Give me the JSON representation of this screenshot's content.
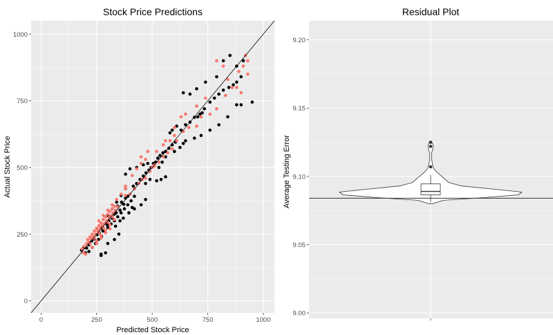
{
  "chart_data": [
    {
      "type": "scatter",
      "title": "Stock Price Predictions",
      "xlabel": "Predicted Stock Price",
      "ylabel": "Actual Stock Price",
      "xlim": [
        -45,
        1050
      ],
      "ylim": [
        -45,
        1050
      ],
      "xticks": [
        0,
        250,
        500,
        750,
        1000
      ],
      "yticks": [
        0,
        250,
        500,
        750,
        1000
      ],
      "grid": true,
      "reference_line": {
        "slope": 1,
        "intercept": 0
      },
      "colors": {
        "panel": "#ebebeb",
        "grid": "#ffffff",
        "actual_vs_pred": "#000000",
        "second_series": "#f8766d",
        "line": "#000000"
      },
      "series": [
        {
          "color": "#000000",
          "points": [
            [
              182,
              190
            ],
            [
              192,
              200
            ],
            [
              205,
              198
            ],
            [
              215,
              210
            ],
            [
              228,
              225
            ],
            [
              240,
              232
            ],
            [
              252,
              248
            ],
            [
              262,
              255
            ],
            [
              270,
              272
            ],
            [
              278,
              262
            ],
            [
              290,
              290
            ],
            [
              298,
              285
            ],
            [
              305,
              300
            ],
            [
              312,
              315
            ],
            [
              320,
              310
            ],
            [
              330,
              325
            ],
            [
              338,
              330
            ],
            [
              345,
              355
            ],
            [
              355,
              340
            ],
            [
              362,
              370
            ],
            [
              372,
              362
            ],
            [
              380,
              385
            ],
            [
              390,
              392
            ],
            [
              215,
              185
            ],
            [
              230,
              200
            ],
            [
              245,
              215
            ],
            [
              258,
              230
            ],
            [
              272,
              242
            ],
            [
              285,
              262
            ],
            [
              300,
              275
            ],
            [
              315,
              288
            ],
            [
              330,
              300
            ],
            [
              345,
              315
            ],
            [
              360,
              330
            ],
            [
              375,
              345
            ],
            [
              390,
              360
            ],
            [
              405,
              375
            ],
            [
              420,
              392
            ],
            [
              300,
              320
            ],
            [
              320,
              345
            ],
            [
              340,
              370
            ],
            [
              360,
              395
            ],
            [
              380,
              420
            ],
            [
              415,
              430
            ],
            [
              430,
              440
            ],
            [
              445,
              455
            ],
            [
              460,
              468
            ],
            [
              472,
              480
            ],
            [
              485,
              490
            ],
            [
              495,
              500
            ],
            [
              505,
              515
            ],
            [
              515,
              520
            ],
            [
              525,
              535
            ],
            [
              535,
              545
            ],
            [
              548,
              555
            ],
            [
              560,
              560
            ],
            [
              575,
              572
            ],
            [
              590,
              585
            ],
            [
              605,
              595
            ],
            [
              630,
              640
            ],
            [
              650,
              660
            ],
            [
              670,
              670
            ],
            [
              690,
              688
            ],
            [
              715,
              700
            ],
            [
              735,
              720
            ],
            [
              760,
              745
            ],
            [
              780,
              760
            ],
            [
              800,
              775
            ],
            [
              820,
              790
            ],
            [
              845,
              800
            ],
            [
              865,
              810
            ],
            [
              880,
              820
            ],
            [
              900,
              840
            ],
            [
              650,
              600
            ],
            [
              690,
              610
            ],
            [
              720,
              620
            ],
            [
              760,
              640
            ],
            [
              800,
              660
            ],
            [
              840,
              690
            ],
            [
              880,
              735
            ],
            [
              900,
              735
            ],
            [
              950,
              745
            ],
            [
              640,
              780
            ],
            [
              670,
              775
            ],
            [
              700,
              795
            ],
            [
              740,
              820
            ],
            [
              790,
              840
            ],
            [
              820,
              900
            ],
            [
              850,
              920
            ],
            [
              880,
              880
            ],
            [
              910,
              900
            ],
            [
              520,
              450
            ],
            [
              540,
              455
            ],
            [
              560,
              465
            ],
            [
              270,
              170
            ],
            [
              300,
              215
            ],
            [
              330,
              230
            ],
            [
              350,
              250
            ],
            [
              420,
              345
            ],
            [
              450,
              360
            ],
            [
              470,
              380
            ],
            [
              380,
              475
            ],
            [
              400,
              495
            ],
            [
              430,
              500
            ],
            [
              460,
              510
            ],
            [
              480,
              515
            ],
            [
              270,
              175
            ],
            [
              290,
              180
            ],
            [
              200,
              180
            ],
            [
              335,
              280
            ],
            [
              355,
              300
            ],
            [
              370,
              310
            ],
            [
              395,
              330
            ],
            [
              410,
              350
            ],
            [
              600,
              560
            ],
            [
              625,
              575
            ],
            [
              640,
              590
            ],
            [
              530,
              500
            ],
            [
              545,
              520
            ],
            [
              560,
              540
            ],
            [
              470,
              440
            ],
            [
              490,
              455
            ],
            [
              590,
              640
            ],
            [
              610,
              655
            ],
            [
              580,
              630
            ],
            [
              705,
              690
            ],
            [
              725,
              705
            ]
          ]
        },
        {
          "color": "#f8766d",
          "points": [
            [
              185,
              195
            ],
            [
              195,
              205
            ],
            [
              205,
              215
            ],
            [
              215,
              220
            ],
            [
              225,
              232
            ],
            [
              235,
              240
            ],
            [
              245,
              250
            ],
            [
              255,
              262
            ],
            [
              265,
              270
            ],
            [
              275,
              282
            ],
            [
              285,
              290
            ],
            [
              295,
              300
            ],
            [
              305,
              312
            ],
            [
              315,
              320
            ],
            [
              325,
              330
            ],
            [
              335,
              340
            ],
            [
              345,
              352
            ],
            [
              210,
              230
            ],
            [
              220,
              240
            ],
            [
              230,
              250
            ],
            [
              240,
              262
            ],
            [
              250,
              272
            ],
            [
              260,
              282
            ],
            [
              270,
              292
            ],
            [
              280,
              305
            ],
            [
              290,
              315
            ],
            [
              300,
              325
            ],
            [
              310,
              335
            ],
            [
              320,
              345
            ],
            [
              330,
              355
            ],
            [
              220,
              215
            ],
            [
              240,
              235
            ],
            [
              260,
              255
            ],
            [
              280,
              275
            ],
            [
              300,
              295
            ],
            [
              320,
              315
            ],
            [
              250,
              225
            ],
            [
              270,
              245
            ],
            [
              290,
              265
            ],
            [
              310,
              285
            ],
            [
              330,
              305
            ],
            [
              260,
              300
            ],
            [
              280,
              320
            ],
            [
              300,
              340
            ],
            [
              320,
              360
            ],
            [
              340,
              380
            ],
            [
              360,
              400
            ],
            [
              380,
              420
            ],
            [
              380,
              395
            ],
            [
              400,
              400
            ],
            [
              420,
              420
            ],
            [
              440,
              440
            ],
            [
              455,
              455
            ],
            [
              470,
              460
            ],
            [
              490,
              485
            ],
            [
              510,
              505
            ],
            [
              530,
              520
            ],
            [
              550,
              540
            ],
            [
              570,
              555
            ],
            [
              590,
              570
            ],
            [
              610,
              600
            ],
            [
              640,
              635
            ],
            [
              665,
              650
            ],
            [
              700,
              655
            ],
            [
              720,
              690
            ],
            [
              760,
              700
            ],
            [
              790,
              720
            ],
            [
              830,
              770
            ],
            [
              860,
              800
            ],
            [
              890,
              860
            ],
            [
              910,
              880
            ],
            [
              930,
              900
            ],
            [
              450,
              540
            ],
            [
              480,
              560
            ],
            [
              520,
              560
            ],
            [
              560,
              600
            ],
            [
              600,
              650
            ],
            [
              630,
              690
            ],
            [
              650,
              700
            ],
            [
              700,
              730
            ],
            [
              740,
              760
            ],
            [
              790,
              900
            ],
            [
              820,
              880
            ],
            [
              840,
              830
            ],
            [
              880,
              800
            ],
            [
              900,
              780
            ],
            [
              920,
              920
            ],
            [
              930,
              850
            ],
            [
              600,
              620
            ],
            [
              580,
              600
            ],
            [
              550,
              585
            ],
            [
              500,
              500
            ],
            [
              510,
              510
            ],
            [
              380,
              430
            ],
            [
              410,
              470
            ],
            [
              430,
              495
            ],
            [
              450,
              515
            ],
            [
              470,
              530
            ],
            [
              230,
              200
            ],
            [
              250,
              215
            ],
            [
              270,
              235
            ],
            [
              290,
              255
            ],
            [
              310,
              270
            ],
            [
              200,
              175
            ],
            [
              190,
              180
            ]
          ]
        }
      ]
    },
    {
      "type": "violin",
      "title": "Residual Plot",
      "xlabel": "",
      "ylabel": "Average Testing Error",
      "ylim": [
        8.996,
        9.214
      ],
      "yticks": [
        "9.00",
        "9.05",
        "9.10",
        "9.15",
        "9.20"
      ],
      "ytick_values": [
        9.0,
        9.05,
        9.1,
        9.15,
        9.2
      ],
      "xticks": [
        ""
      ],
      "grid": true,
      "hline": 9.084,
      "box": {
        "min": 9.081,
        "q1": 9.0865,
        "median": 9.089,
        "q3": 9.0945,
        "max": 9.101
      },
      "outliers": [
        9.107,
        9.122,
        9.125
      ],
      "violin_profile": [
        [
          9.08,
          0.02
        ],
        [
          9.0825,
          0.14
        ],
        [
          9.0845,
          0.6
        ],
        [
          9.0865,
          0.96
        ],
        [
          9.0885,
          1.0
        ],
        [
          9.0905,
          0.72
        ],
        [
          9.093,
          0.34
        ],
        [
          9.0955,
          0.2
        ],
        [
          9.099,
          0.14
        ],
        [
          9.103,
          0.07
        ],
        [
          9.106,
          0.03
        ],
        [
          9.109,
          0.02
        ],
        [
          9.113,
          0.01
        ],
        [
          9.117,
          0.01
        ],
        [
          9.12,
          0.025
        ],
        [
          9.1235,
          0.025
        ],
        [
          9.126,
          0.005
        ]
      ],
      "colors": {
        "panel": "#ebebeb",
        "grid": "#ffffff",
        "violin_fill": "#ffffff",
        "outline": "#333333",
        "hline": "#333333"
      }
    }
  ]
}
